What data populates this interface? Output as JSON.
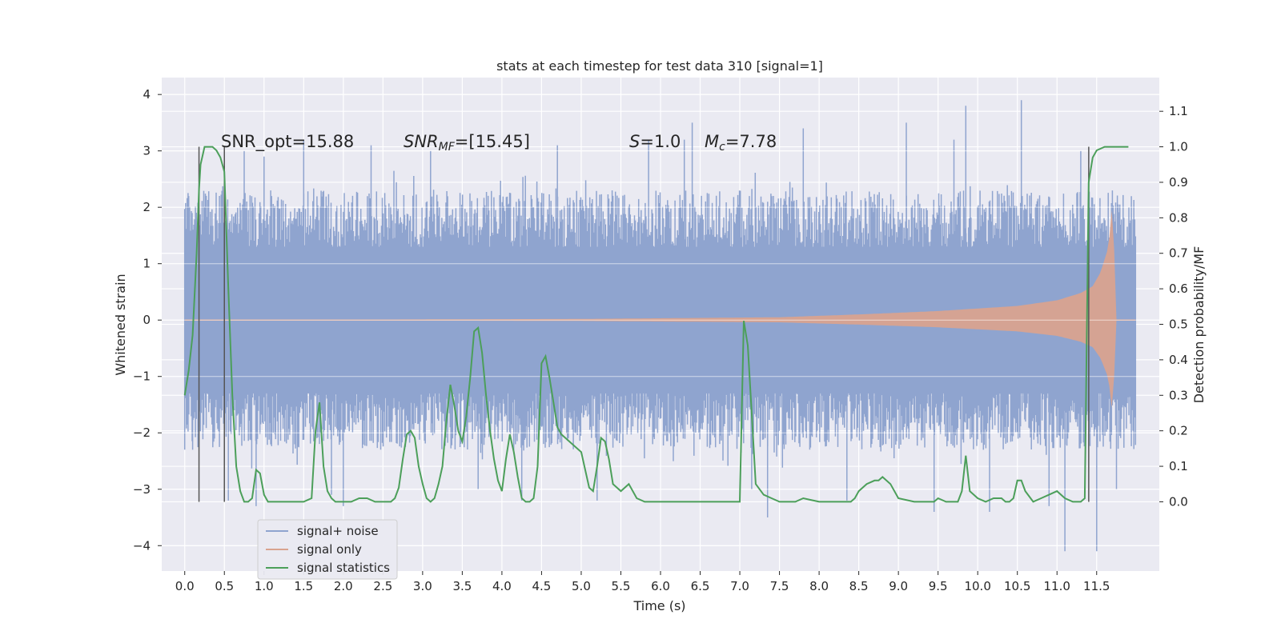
{
  "chart_data": {
    "type": "line",
    "title": "stats at each timestep for test data 310 [signal=1]",
    "xlabel": "Time (s)",
    "ylabel_left": "Whitened strain",
    "ylabel_right": "Detection probability/MF",
    "x_ticks": [
      "0.0",
      "0.5",
      "1.0",
      "1.5",
      "2.0",
      "2.5",
      "3.0",
      "3.5",
      "4.0",
      "4.5",
      "5.0",
      "5.5",
      "6.0",
      "6.5",
      "7.0",
      "7.5",
      "8.0",
      "8.5",
      "9.0",
      "9.5",
      "10.0",
      "10.5",
      "11.0",
      "11.5"
    ],
    "y_left_ticks": [
      "−4",
      "−3",
      "−2",
      "−1",
      "0",
      "1",
      "2",
      "3",
      "4"
    ],
    "y_right_ticks": [
      "0.0",
      "0.1",
      "0.2",
      "0.3",
      "0.4",
      "0.5",
      "0.6",
      "0.7",
      "0.8",
      "0.9",
      "1.0",
      "1.1"
    ],
    "xlim": [
      -0.29,
      12.29
    ],
    "ylim_left": [
      -4.45,
      4.3
    ],
    "ylim_right": [
      -0.195,
      1.195
    ],
    "grid": true,
    "legend_position": "lower-left",
    "annotations": {
      "snr_opt": "SNR_opt=15.88",
      "snr_mf": "=[15.45]",
      "s_value": "=1.0",
      "mc_value": "=7.78"
    },
    "vertical_markers": [
      0.18,
      0.5,
      11.4
    ],
    "series": [
      {
        "name": "signal+ noise",
        "color": "#8fa4cf",
        "envelope_t": [
          0.0,
          6.0,
          11.99
        ],
        "envelope_amp": [
          2.3,
          2.3,
          2.3
        ],
        "spikes": [
          {
            "t": 0.05,
            "v": 2.2
          },
          {
            "t": 0.1,
            "v": -2.3
          },
          {
            "t": 0.55,
            "v": -3.2
          },
          {
            "t": 0.75,
            "v": 3.0
          },
          {
            "t": 0.9,
            "v": -3.3
          },
          {
            "t": 1.0,
            "v": 2.9
          },
          {
            "t": 1.5,
            "v": 3.2
          },
          {
            "t": 1.85,
            "v": -3.1
          },
          {
            "t": 2.0,
            "v": -3.3
          },
          {
            "t": 2.35,
            "v": 3.1
          },
          {
            "t": 3.1,
            "v": 3.0
          },
          {
            "t": 3.7,
            "v": -3.0
          },
          {
            "t": 4.25,
            "v": -3.2
          },
          {
            "t": 4.7,
            "v": 3.1
          },
          {
            "t": 5.2,
            "v": -3.2
          },
          {
            "t": 5.85,
            "v": 3.2
          },
          {
            "t": 5.95,
            "v": 0.9
          },
          {
            "t": 6.3,
            "v": 3.2
          },
          {
            "t": 6.4,
            "v": 3.5
          },
          {
            "t": 7.15,
            "v": -3.0
          },
          {
            "t": 7.35,
            "v": -3.5
          },
          {
            "t": 7.8,
            "v": 3.4
          },
          {
            "t": 8.35,
            "v": -3.2
          },
          {
            "t": 9.1,
            "v": 3.5
          },
          {
            "t": 9.45,
            "v": -3.4
          },
          {
            "t": 9.7,
            "v": 3.2
          },
          {
            "t": 9.85,
            "v": 3.8
          },
          {
            "t": 10.15,
            "v": -3.4
          },
          {
            "t": 10.55,
            "v": 3.9
          },
          {
            "t": 10.9,
            "v": -3.3
          },
          {
            "t": 11.1,
            "v": -4.1
          },
          {
            "t": 11.5,
            "v": -4.1
          },
          {
            "t": 11.75,
            "v": -3.0
          },
          {
            "t": 11.3,
            "v": 3.0
          }
        ]
      },
      {
        "name": "signal only",
        "color": "#d9a38f",
        "envelope_t": [
          0.0,
          5.0,
          7.5,
          8.5,
          9.5,
          10.5,
          11.0,
          11.3,
          11.45,
          11.55,
          11.65,
          11.7,
          11.75,
          11.99
        ],
        "envelope_amp": [
          0.0,
          0.02,
          0.05,
          0.1,
          0.16,
          0.25,
          0.35,
          0.48,
          0.6,
          0.85,
          1.3,
          2.1,
          0.0,
          0.0
        ]
      },
      {
        "name": "signal statistics",
        "color": "#4c9f5a",
        "x": [
          0.0,
          0.05,
          0.1,
          0.15,
          0.18,
          0.2,
          0.25,
          0.3,
          0.35,
          0.4,
          0.45,
          0.5,
          0.55,
          0.6,
          0.65,
          0.7,
          0.75,
          0.8,
          0.85,
          0.9,
          0.95,
          1.0,
          1.05,
          1.1,
          1.2,
          1.3,
          1.4,
          1.5,
          1.6,
          1.65,
          1.7,
          1.75,
          1.8,
          1.85,
          1.9,
          2.0,
          2.1,
          2.2,
          2.3,
          2.4,
          2.5,
          2.55,
          2.6,
          2.65,
          2.7,
          2.75,
          2.8,
          2.85,
          2.9,
          2.95,
          3.0,
          3.05,
          3.1,
          3.15,
          3.2,
          3.25,
          3.3,
          3.35,
          3.4,
          3.45,
          3.5,
          3.55,
          3.6,
          3.65,
          3.7,
          3.75,
          3.8,
          3.85,
          3.9,
          3.95,
          4.0,
          4.05,
          4.1,
          4.15,
          4.2,
          4.25,
          4.3,
          4.35,
          4.4,
          4.45,
          4.5,
          4.55,
          4.6,
          4.65,
          4.7,
          4.75,
          4.8,
          4.9,
          5.0,
          5.1,
          5.15,
          5.2,
          5.25,
          5.3,
          5.35,
          5.4,
          5.5,
          5.6,
          5.7,
          5.8,
          6.0,
          6.2,
          6.4,
          6.6,
          6.8,
          6.9,
          6.95,
          7.0,
          7.05,
          7.1,
          7.15,
          7.2,
          7.3,
          7.4,
          7.5,
          7.6,
          7.7,
          7.8,
          8.0,
          8.2,
          8.4,
          8.45,
          8.5,
          8.6,
          8.7,
          8.75,
          8.8,
          8.9,
          9.0,
          9.2,
          9.3,
          9.4,
          9.45,
          9.5,
          9.6,
          9.7,
          9.75,
          9.8,
          9.85,
          9.9,
          10.0,
          10.1,
          10.2,
          10.3,
          10.35,
          10.4,
          10.45,
          10.5,
          10.55,
          10.6,
          10.7,
          10.8,
          10.9,
          11.0,
          11.1,
          11.2,
          11.3,
          11.35,
          11.4,
          11.45,
          11.5,
          11.6,
          11.7,
          11.8,
          11.9
        ],
        "y": [
          0.3,
          0.37,
          0.47,
          0.7,
          0.88,
          0.95,
          1.0,
          1.0,
          1.0,
          0.99,
          0.97,
          0.93,
          0.6,
          0.3,
          0.1,
          0.03,
          0.0,
          0.0,
          0.01,
          0.09,
          0.08,
          0.02,
          0.0,
          0.0,
          0.0,
          0.0,
          0.0,
          0.0,
          0.01,
          0.2,
          0.28,
          0.1,
          0.03,
          0.01,
          0.0,
          0.0,
          0.0,
          0.01,
          0.01,
          0.0,
          0.0,
          0.0,
          0.0,
          0.01,
          0.04,
          0.12,
          0.19,
          0.2,
          0.18,
          0.1,
          0.05,
          0.01,
          0.0,
          0.01,
          0.05,
          0.1,
          0.23,
          0.33,
          0.27,
          0.2,
          0.17,
          0.24,
          0.35,
          0.48,
          0.49,
          0.42,
          0.3,
          0.2,
          0.12,
          0.06,
          0.03,
          0.12,
          0.19,
          0.14,
          0.07,
          0.01,
          0.0,
          0.0,
          0.01,
          0.1,
          0.39,
          0.41,
          0.35,
          0.28,
          0.21,
          0.19,
          0.18,
          0.16,
          0.14,
          0.04,
          0.03,
          0.1,
          0.18,
          0.17,
          0.12,
          0.05,
          0.03,
          0.05,
          0.01,
          0.0,
          0.0,
          0.0,
          0.0,
          0.0,
          0.0,
          0.0,
          0.0,
          0.0,
          0.51,
          0.44,
          0.25,
          0.05,
          0.02,
          0.01,
          0.0,
          0.0,
          0.0,
          0.01,
          0.0,
          0.0,
          0.0,
          0.01,
          0.03,
          0.05,
          0.06,
          0.06,
          0.07,
          0.05,
          0.01,
          0.0,
          0.0,
          0.0,
          0.0,
          0.01,
          0.0,
          0.0,
          0.0,
          0.03,
          0.13,
          0.03,
          0.01,
          0.0,
          0.01,
          0.01,
          0.0,
          0.0,
          0.01,
          0.06,
          0.06,
          0.03,
          0.0,
          0.01,
          0.02,
          0.03,
          0.01,
          0.0,
          0.0,
          0.01,
          0.9,
          0.97,
          0.99,
          1.0,
          1.0,
          1.0,
          1.0
        ]
      }
    ]
  }
}
